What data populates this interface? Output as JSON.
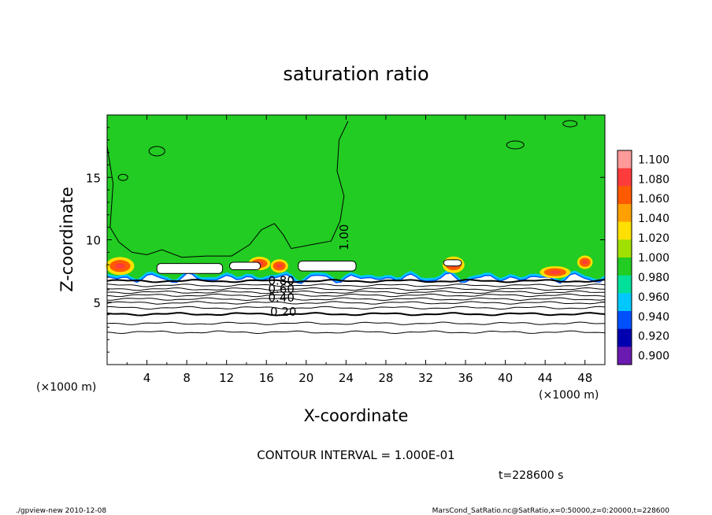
{
  "chart_data": {
    "type": "heatmap",
    "title": "saturation ratio",
    "xlabel": "X-coordinate",
    "ylabel": "Z-coordinate",
    "x_unit": "(×1000 m)",
    "z_unit": "(×1000 m)",
    "xlim": [
      0,
      50
    ],
    "ylim": [
      0,
      20
    ],
    "x_ticks": [
      "4",
      "8",
      "12",
      "16",
      "20",
      "24",
      "28",
      "32",
      "36",
      "40",
      "44",
      "48"
    ],
    "y_ticks": [
      "5",
      "10",
      "15"
    ],
    "contour_labels": [
      "1.00",
      "0.80",
      "0.60",
      "0.40",
      "0.20"
    ],
    "contour_interval_text": "CONTOUR INTERVAL = 1.000E-01",
    "time_text": "t=228600 s",
    "colorbar": {
      "levels": [
        "1.100",
        "1.080",
        "1.060",
        "1.040",
        "1.020",
        "1.000",
        "0.980",
        "0.960",
        "0.940",
        "0.920",
        "0.900"
      ],
      "colors": [
        "#ff9a9a",
        "#ff3b3b",
        "#ff5a00",
        "#ffa000",
        "#ffe000",
        "#a0e000",
        "#22cc22",
        "#00e09a",
        "#00c8ff",
        "#0050ff",
        "#0000b0",
        "#6a1ab0"
      ]
    },
    "grid": false
  },
  "footer": {
    "left": "./gpview-new   2010-12-08",
    "right": "MarsCond_SatRatio.nc@SatRatio,x=0:50000,z=0:20000,t=228600"
  }
}
